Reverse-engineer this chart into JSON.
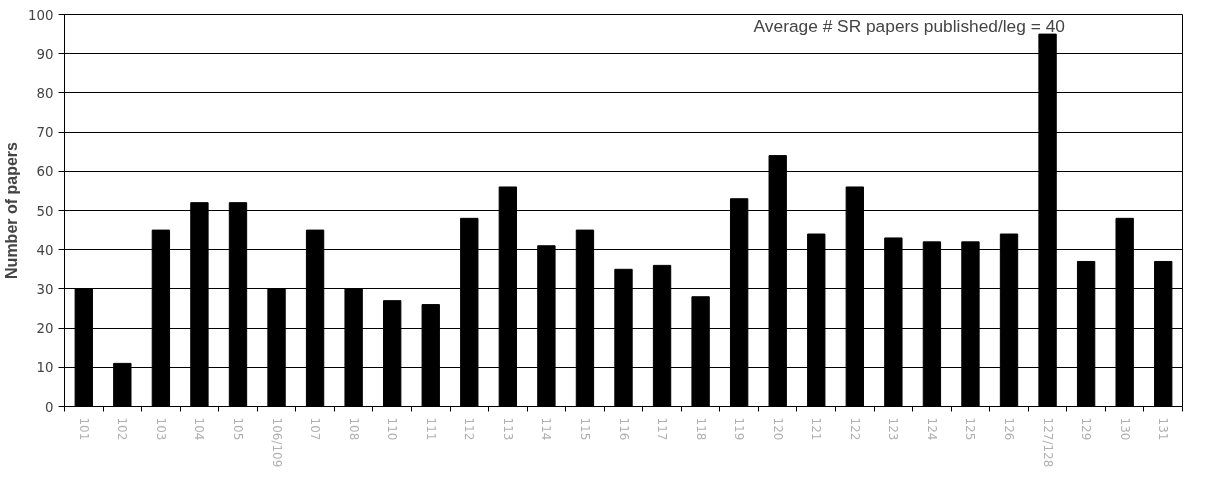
{
  "chart_data": {
    "type": "bar",
    "ylabel": "Number of papers",
    "categories": [
      "101",
      "102",
      "103",
      "104",
      "105",
      "106/109",
      "107",
      "108",
      "110",
      "111",
      "112",
      "113",
      "114",
      "115",
      "116",
      "117",
      "118",
      "119",
      "120",
      "121",
      "122",
      "123",
      "124",
      "125",
      "126",
      "127/128",
      "129",
      "130",
      "131"
    ],
    "values": [
      30,
      11,
      45,
      52,
      52,
      30,
      45,
      30,
      27,
      26,
      48,
      56,
      41,
      45,
      35,
      36,
      28,
      53,
      64,
      44,
      56,
      43,
      42,
      42,
      44,
      95,
      37,
      48,
      37
    ],
    "color": "#000000",
    "ylim": [
      0,
      100
    ],
    "yticks": [
      0,
      10,
      20,
      30,
      40,
      50,
      60,
      70,
      80,
      90,
      100
    ],
    "grid": "y",
    "annotations": [
      "Average # SR papers published/leg = 40"
    ]
  }
}
